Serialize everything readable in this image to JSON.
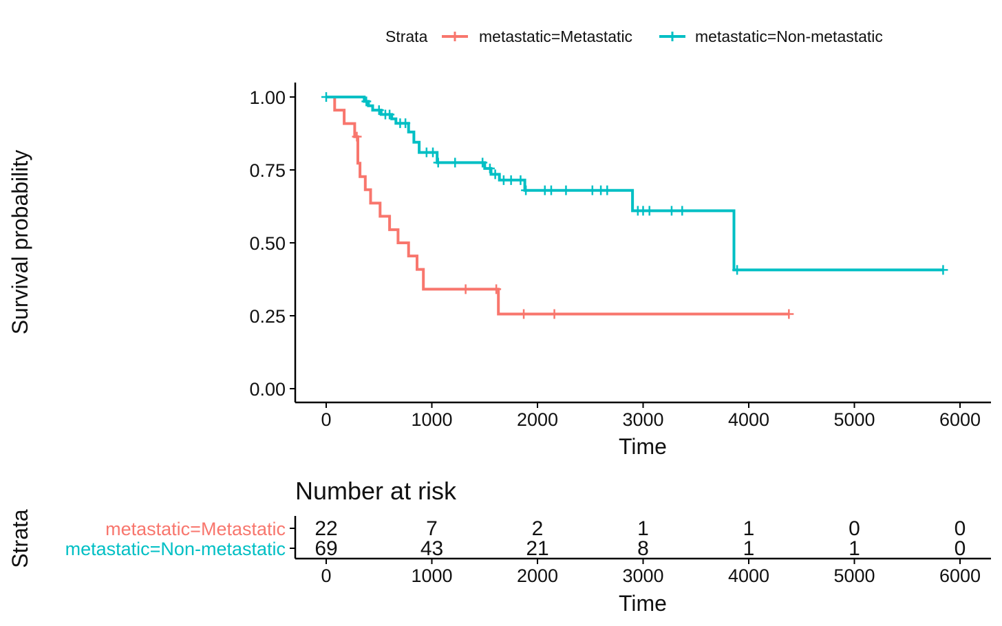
{
  "chart_data": {
    "type": "line",
    "subtype": "kaplan-meier",
    "xlabel": "Time",
    "ylabel": "Survival probability",
    "xlim": [
      -300,
      6300
    ],
    "ylim": [
      -0.05,
      1.05
    ],
    "x_ticks": [
      0,
      1000,
      2000,
      3000,
      4000,
      5000,
      6000
    ],
    "y_ticks": [
      "0.00",
      "0.25",
      "0.50",
      "0.75",
      "1.00"
    ],
    "legend": {
      "title": "Strata",
      "position": "top",
      "entries": [
        "metastatic=Metastatic",
        "metastatic=Non-metastatic"
      ]
    },
    "series": [
      {
        "name": "metastatic=Metastatic",
        "color": "#F8766D",
        "steps": [
          [
            0,
            1.0
          ],
          [
            80,
            1.0
          ],
          [
            80,
            0.955
          ],
          [
            170,
            0.955
          ],
          [
            170,
            0.909
          ],
          [
            270,
            0.909
          ],
          [
            270,
            0.864
          ],
          [
            300,
            0.864
          ],
          [
            300,
            0.773
          ],
          [
            320,
            0.773
          ],
          [
            320,
            0.727
          ],
          [
            370,
            0.727
          ],
          [
            370,
            0.682
          ],
          [
            420,
            0.682
          ],
          [
            420,
            0.636
          ],
          [
            510,
            0.636
          ],
          [
            510,
            0.591
          ],
          [
            600,
            0.591
          ],
          [
            600,
            0.545
          ],
          [
            680,
            0.545
          ],
          [
            680,
            0.5
          ],
          [
            780,
            0.5
          ],
          [
            780,
            0.455
          ],
          [
            860,
            0.455
          ],
          [
            860,
            0.409
          ],
          [
            920,
            0.409
          ],
          [
            920,
            0.341
          ],
          [
            1630,
            0.341
          ],
          [
            1630,
            0.256
          ],
          [
            4380,
            0.256
          ]
        ],
        "censored": [
          [
            290,
            0.864
          ],
          [
            1320,
            0.341
          ],
          [
            1610,
            0.341
          ],
          [
            1870,
            0.256
          ],
          [
            2160,
            0.256
          ],
          [
            4380,
            0.256
          ]
        ]
      },
      {
        "name": "metastatic=Non-metastatic",
        "color": "#00BFC4",
        "steps": [
          [
            0,
            1.0
          ],
          [
            360,
            1.0
          ],
          [
            360,
            0.985
          ],
          [
            400,
            0.985
          ],
          [
            400,
            0.97
          ],
          [
            440,
            0.97
          ],
          [
            440,
            0.955
          ],
          [
            520,
            0.955
          ],
          [
            520,
            0.94
          ],
          [
            620,
            0.94
          ],
          [
            620,
            0.925
          ],
          [
            660,
            0.925
          ],
          [
            660,
            0.91
          ],
          [
            780,
            0.91
          ],
          [
            780,
            0.88
          ],
          [
            830,
            0.88
          ],
          [
            830,
            0.845
          ],
          [
            880,
            0.845
          ],
          [
            880,
            0.81
          ],
          [
            1050,
            0.81
          ],
          [
            1050,
            0.775
          ],
          [
            1500,
            0.775
          ],
          [
            1500,
            0.755
          ],
          [
            1560,
            0.755
          ],
          [
            1560,
            0.735
          ],
          [
            1640,
            0.735
          ],
          [
            1640,
            0.715
          ],
          [
            1880,
            0.715
          ],
          [
            1880,
            0.68
          ],
          [
            2900,
            0.68
          ],
          [
            2900,
            0.61
          ],
          [
            3860,
            0.61
          ],
          [
            3860,
            0.407
          ],
          [
            5840,
            0.407
          ]
        ],
        "censored": [
          [
            0,
            1.0
          ],
          [
            380,
            0.985
          ],
          [
            500,
            0.955
          ],
          [
            560,
            0.94
          ],
          [
            600,
            0.94
          ],
          [
            700,
            0.91
          ],
          [
            750,
            0.91
          ],
          [
            950,
            0.81
          ],
          [
            1010,
            0.81
          ],
          [
            1060,
            0.775
          ],
          [
            1220,
            0.775
          ],
          [
            1480,
            0.775
          ],
          [
            1550,
            0.755
          ],
          [
            1600,
            0.735
          ],
          [
            1680,
            0.715
          ],
          [
            1750,
            0.715
          ],
          [
            1840,
            0.715
          ],
          [
            1890,
            0.68
          ],
          [
            2070,
            0.68
          ],
          [
            2130,
            0.68
          ],
          [
            2270,
            0.68
          ],
          [
            2520,
            0.68
          ],
          [
            2600,
            0.68
          ],
          [
            2660,
            0.68
          ],
          [
            2950,
            0.61
          ],
          [
            3000,
            0.61
          ],
          [
            3060,
            0.61
          ],
          [
            3270,
            0.61
          ],
          [
            3370,
            0.61
          ],
          [
            3890,
            0.407
          ],
          [
            5840,
            0.407
          ]
        ]
      }
    ],
    "risk_table": {
      "title": "Number at risk",
      "ylabel": "Strata",
      "xlabel": "Time",
      "times": [
        0,
        1000,
        2000,
        3000,
        4000,
        5000,
        6000
      ],
      "rows": [
        {
          "label": "metastatic=Metastatic",
          "color": "#F8766D",
          "counts": [
            "22",
            "7",
            "2",
            "1",
            "1",
            "0",
            "0"
          ]
        },
        {
          "label": "metastatic=Non-metastatic",
          "color": "#00BFC4",
          "counts": [
            "69",
            "43",
            "21",
            "8",
            "1",
            "1",
            "0"
          ]
        }
      ]
    }
  }
}
